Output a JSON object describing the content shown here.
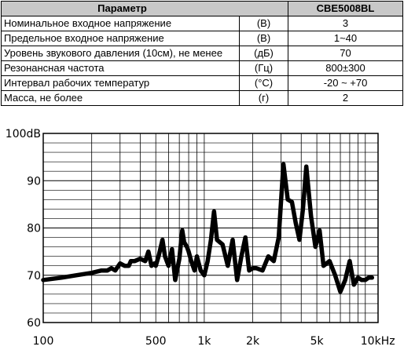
{
  "table": {
    "headers": [
      "Параметр",
      "CBE5008BL"
    ],
    "rows": [
      {
        "name": "Номинальное входное напряжение",
        "unit": "(В)",
        "value": "3"
      },
      {
        "name": "Предельное входное напряжение",
        "unit": "(В)",
        "value": "1~40"
      },
      {
        "name": "Уровень звукового давления (10см), не менее",
        "unit": "(дБ)",
        "value": "70"
      },
      {
        "name": "Резонансная частота",
        "unit": "(Гц)",
        "value": "800±300"
      },
      {
        "name": "Интервал рабочих температур",
        "unit": "(°C)",
        "value": "-20 ~ +70"
      },
      {
        "name": "Масса, не более",
        "unit": "(г)",
        "value": "2"
      }
    ]
  },
  "chart_data": {
    "type": "line",
    "x_scale": "log",
    "xlim": [
      100,
      12000
    ],
    "ylim": [
      60,
      100
    ],
    "grid": true,
    "y_tick_labels": [
      "100dB",
      "90",
      "80",
      "70",
      "60"
    ],
    "y_ticks": [
      100,
      90,
      80,
      70,
      60
    ],
    "x_tick_labels": [
      "100",
      "500",
      "1k",
      "2k",
      "5k",
      "10kHz"
    ],
    "x_ticks": [
      100,
      500,
      1000,
      2000,
      5000,
      10000
    ],
    "series": [
      {
        "x": [
          100,
          130,
          160,
          200,
          230,
          250,
          265,
          280,
          300,
          320,
          340,
          350,
          370,
          400,
          430,
          450,
          470,
          490,
          500,
          520,
          550,
          570,
          600,
          630,
          660,
          700,
          730,
          750,
          780,
          800,
          830,
          870,
          900,
          950,
          1000,
          1050,
          1100,
          1150,
          1200,
          1300,
          1400,
          1500,
          1600,
          1700,
          1800,
          1900,
          2000,
          2100,
          2300,
          2500,
          2700,
          2900,
          3100,
          3300,
          3500,
          3700,
          3900,
          4100,
          4300,
          4600,
          4900,
          5200,
          5500,
          6000,
          6500,
          7000,
          7500,
          8000,
          8500,
          9000,
          9500,
          10000,
          10500,
          11000
        ],
        "values": [
          69.0,
          69.5,
          70.0,
          70.5,
          71.0,
          71.0,
          71.5,
          71.0,
          72.5,
          72.0,
          72.0,
          73.0,
          73.0,
          73.5,
          73.0,
          75.0,
          72.0,
          72.5,
          72.0,
          74.0,
          77.5,
          74.0,
          72.0,
          75.5,
          69.0,
          73.5,
          79.5,
          77.0,
          76.0,
          75.0,
          73.0,
          71.0,
          74.0,
          71.0,
          70.0,
          73.0,
          77.5,
          83.5,
          77.5,
          76.5,
          72.0,
          77.5,
          69.0,
          74.0,
          78.0,
          71.0,
          71.5,
          71.5,
          71.0,
          74.0,
          73.0,
          78.0,
          93.5,
          86.0,
          85.5,
          81.0,
          77.5,
          84.0,
          93.0,
          82.5,
          76.0,
          79.5,
          72.0,
          73.0,
          70.0,
          66.5,
          69.0,
          73.0,
          68.0,
          69.5,
          69.0,
          69.0,
          69.5,
          69.5
        ]
      }
    ]
  },
  "colors": {
    "header_bg": "#c8c8c8",
    "grid": "#000000",
    "plot_bg": "#ffffff",
    "curve": "#000000"
  }
}
